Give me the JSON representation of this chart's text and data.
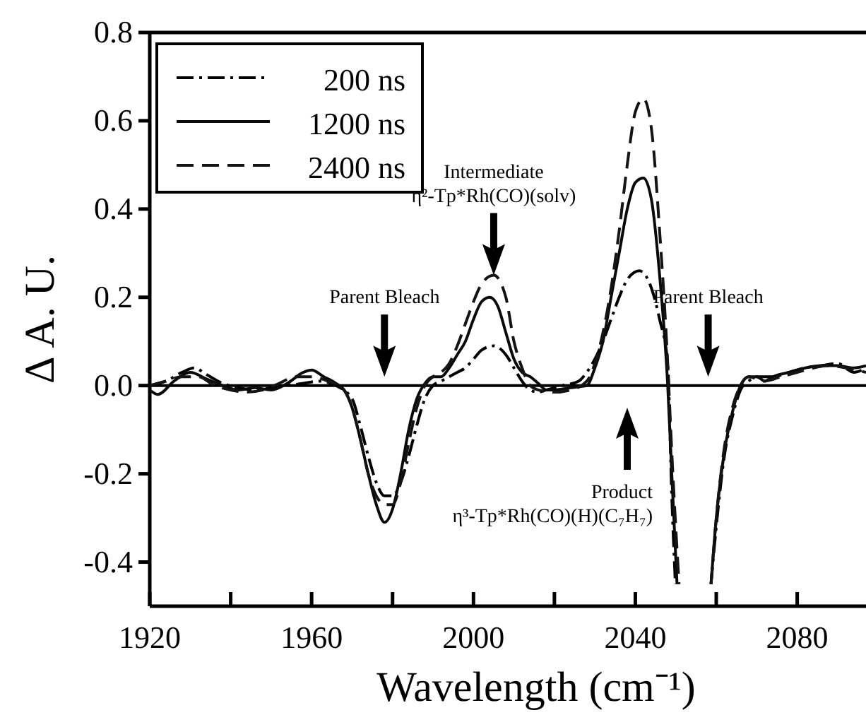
{
  "chart_data": {
    "type": "line",
    "xlabel": "Wavelength (cm⁻¹)",
    "ylabel": "Δ A. U.",
    "xlim": [
      1920,
      2097
    ],
    "xticks": [
      1920,
      {
        "value": 1940,
        "label": null
      },
      1960,
      {
        "value": 1980,
        "label": null
      },
      2000,
      {
        "value": 2020,
        "label": null
      },
      2040,
      {
        "value": 2060,
        "label": null
      },
      2080
    ],
    "ylim": [
      -0.5,
      0.8
    ],
    "yticks": [
      {
        "value": -0.4,
        "label": "-0.4"
      },
      {
        "value": -0.2,
        "label": "-0.2"
      },
      {
        "value": 0,
        "label": "0.0"
      },
      {
        "value": 0.2,
        "label": "0.2"
      },
      {
        "value": 0.4,
        "label": "0.4"
      },
      {
        "value": 0.6,
        "label": "0.6"
      },
      {
        "value": 0.8,
        "label": "0.8"
      }
    ],
    "legend": "top left",
    "grid": false,
    "ref_lines": [
      {
        "axis": "y",
        "value": 0,
        "color": "#000000",
        "line_style": "solid"
      }
    ],
    "annotations": [
      "Parent Bleach",
      "Intermediate\nη²-Tp*Rh(CO)(solv)",
      "Product\nη³-Tp*Rh(CO)(H)(C₇H₇)",
      "Parent Bleach"
    ],
    "series": [
      {
        "name": "200 ns",
        "color": "#000000",
        "line_style": "dashdot",
        "x": [
          1920,
          1924,
          1928,
          1931,
          1934,
          1938,
          1942,
          1946,
          1950,
          1954,
          1958,
          1962,
          1966,
          1970,
          1972,
          1974,
          1976,
          1978,
          1980,
          1982,
          1984,
          1986,
          1988,
          1990,
          1992,
          1994,
          1996,
          1998,
          2000,
          2002,
          2005,
          2008,
          2010,
          2012,
          2014,
          2016,
          2018,
          2022,
          2026,
          2028,
          2030,
          2032,
          2034,
          2036,
          2038,
          2041,
          2044,
          2046,
          2048,
          2049,
          2049.9,
          2054,
          2058.7,
          2060,
          2062,
          2064,
          2066,
          2068,
          2070,
          2074,
          2078,
          2082,
          2086,
          2090,
          2094,
          2097
        ],
        "values": [
          0.0,
          0.01,
          0.03,
          0.04,
          0.025,
          0.005,
          -0.005,
          -0.01,
          -0.005,
          0.0,
          0.005,
          0.01,
          0.0,
          -0.03,
          -0.09,
          -0.16,
          -0.22,
          -0.25,
          -0.25,
          -0.22,
          -0.16,
          -0.09,
          -0.03,
          0.0,
          0.01,
          0.02,
          0.03,
          0.04,
          0.06,
          0.08,
          0.09,
          0.07,
          0.04,
          0.01,
          -0.01,
          -0.015,
          -0.01,
          0.0,
          0.01,
          0.03,
          0.06,
          0.1,
          0.15,
          0.2,
          0.24,
          0.26,
          0.22,
          0.15,
          0.05,
          -0.25,
          -0.45,
          null,
          -0.45,
          -0.32,
          -0.16,
          -0.07,
          -0.01,
          0.01,
          0.02,
          0.02,
          0.03,
          0.04,
          0.045,
          0.05,
          0.03,
          0.04
        ]
      },
      {
        "name": "1200 ns",
        "color": "#0a0a0a",
        "line_style": "solid",
        "x": [
          1920,
          1922,
          1926,
          1930,
          1934,
          1938,
          1942,
          1946,
          1950,
          1954,
          1958,
          1960,
          1963,
          1966,
          1968,
          1970,
          1972,
          1974,
          1976,
          1978,
          1980,
          1982,
          1984,
          1986,
          1988,
          1990,
          1992,
          1994,
          1996,
          1998,
          2000,
          2002,
          2004,
          2006,
          2008,
          2010,
          2012,
          2014,
          2016,
          2018,
          2020,
          2024,
          2028,
          2030,
          2032,
          2034,
          2036,
          2038,
          2040,
          2042,
          2044,
          2046,
          2048,
          2049,
          2050.3,
          2054,
          2058.7,
          2060,
          2062,
          2064,
          2066,
          2068,
          2070,
          2072,
          2074,
          2078,
          2082,
          2086,
          2090,
          2094,
          2097
        ],
        "values": [
          -0.01,
          -0.02,
          0.01,
          0.03,
          0.015,
          0.0,
          -0.01,
          -0.005,
          -0.01,
          0.005,
          0.03,
          0.035,
          0.02,
          0.005,
          -0.01,
          -0.05,
          -0.12,
          -0.2,
          -0.27,
          -0.31,
          -0.28,
          -0.2,
          -0.1,
          -0.03,
          0.005,
          0.02,
          0.02,
          0.04,
          0.07,
          0.1,
          0.15,
          0.19,
          0.2,
          0.18,
          0.12,
          0.06,
          0.03,
          0.02,
          0.005,
          -0.01,
          -0.01,
          -0.005,
          0.0,
          0.04,
          0.1,
          0.2,
          0.3,
          0.4,
          0.46,
          0.47,
          0.42,
          0.25,
          0.0,
          -0.2,
          -0.45,
          null,
          -0.45,
          -0.3,
          -0.15,
          -0.06,
          0.0,
          0.02,
          0.02,
          0.01,
          0.02,
          0.03,
          0.04,
          0.045,
          0.045,
          0.04,
          0.045
        ]
      },
      {
        "name": "2400 ns",
        "color": "#141414",
        "line_style": "dashed",
        "x": [
          1920,
          1924,
          1928,
          1932,
          1936,
          1940,
          1944,
          1948,
          1952,
          1956,
          1960,
          1964,
          1968,
          1970,
          1972,
          1974,
          1976,
          1978,
          1980,
          1982,
          1984,
          1986,
          1988,
          1990,
          1992,
          1994,
          1996,
          1998,
          2000,
          2002,
          2005,
          2008,
          2010,
          2012,
          2014,
          2016,
          2020,
          2024,
          2028,
          2030,
          2032,
          2034,
          2036,
          2038,
          2040,
          2042,
          2044,
          2046,
          2048,
          2049,
          2050.8,
          2054,
          2058.7,
          2060,
          2062,
          2064,
          2066,
          2068,
          2072,
          2076,
          2080,
          2084,
          2088,
          2092,
          2097
        ],
        "values": [
          0.0,
          0.01,
          0.02,
          0.02,
          0.0,
          -0.01,
          -0.015,
          -0.01,
          0.005,
          0.02,
          0.02,
          0.01,
          -0.01,
          -0.05,
          -0.12,
          -0.2,
          -0.25,
          -0.27,
          -0.27,
          -0.22,
          -0.13,
          -0.05,
          0.0,
          0.02,
          0.03,
          0.05,
          0.09,
          0.14,
          0.19,
          0.23,
          0.25,
          0.2,
          0.1,
          0.04,
          0.0,
          -0.01,
          -0.015,
          -0.01,
          0.01,
          0.05,
          0.12,
          0.22,
          0.35,
          0.5,
          0.62,
          0.65,
          0.58,
          0.35,
          0.05,
          -0.15,
          -0.45,
          null,
          -0.45,
          -0.3,
          -0.14,
          -0.05,
          0.0,
          0.02,
          0.01,
          0.02,
          0.03,
          0.04,
          0.045,
          0.04,
          0.03
        ]
      }
    ]
  }
}
